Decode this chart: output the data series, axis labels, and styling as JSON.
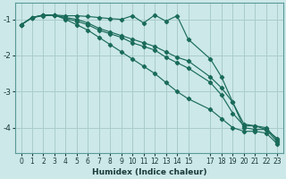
{
  "xlabel": "Humidex (Indice chaleur)",
  "bg_color": "#cce8e8",
  "grid_color": "#aacccc",
  "line_color": "#1a6b5a",
  "xlim": [
    -0.5,
    23.5
  ],
  "ylim": [
    -4.7,
    -0.55
  ],
  "yticks": [
    -4,
    -3,
    -2,
    -1
  ],
  "xticks": [
    0,
    1,
    2,
    3,
    4,
    5,
    6,
    7,
    8,
    9,
    10,
    11,
    12,
    13,
    14,
    15,
    17,
    18,
    19,
    20,
    21,
    22,
    23
  ],
  "series": [
    {
      "x": [
        0,
        1,
        2,
        3,
        4,
        5,
        6,
        7,
        8,
        9,
        10,
        11,
        12,
        13,
        14,
        15,
        17,
        18,
        19,
        20,
        21,
        22,
        23
      ],
      "y": [
        -1.15,
        -0.95,
        -0.9,
        -0.88,
        -0.9,
        -0.9,
        -0.92,
        -0.95,
        -0.98,
        -1.0,
        -0.9,
        -1.1,
        -0.88,
        -1.05,
        -0.9,
        -1.55,
        -2.1,
        -2.6,
        -3.3,
        -4.0,
        -4.05,
        -4.05,
        -4.3
      ]
    },
    {
      "x": [
        0,
        1,
        2,
        3,
        4,
        5,
        6,
        7,
        8,
        9,
        10,
        11,
        12,
        13,
        14,
        15,
        17,
        18,
        19,
        20,
        21,
        22,
        23
      ],
      "y": [
        -1.15,
        -0.95,
        -0.88,
        -0.88,
        -0.95,
        -1.0,
        -1.1,
        -1.25,
        -1.35,
        -1.45,
        -1.55,
        -1.65,
        -1.75,
        -1.9,
        -2.05,
        -2.15,
        -2.6,
        -2.9,
        -3.3,
        -3.9,
        -3.95,
        -4.0,
        -4.35
      ]
    },
    {
      "x": [
        0,
        1,
        2,
        3,
        4,
        5,
        6,
        7,
        8,
        9,
        10,
        11,
        12,
        13,
        14,
        15,
        17,
        18,
        19,
        20,
        21,
        22,
        23
      ],
      "y": [
        -1.15,
        -0.95,
        -0.88,
        -0.88,
        -0.98,
        -1.05,
        -1.15,
        -1.3,
        -1.4,
        -1.5,
        -1.65,
        -1.75,
        -1.85,
        -2.05,
        -2.2,
        -2.35,
        -2.75,
        -3.1,
        -3.6,
        -3.95,
        -3.95,
        -4.05,
        -4.4
      ]
    },
    {
      "x": [
        0,
        1,
        2,
        3,
        4,
        5,
        6,
        7,
        8,
        9,
        10,
        11,
        12,
        13,
        14,
        15,
        17,
        18,
        19,
        20,
        21,
        22,
        23
      ],
      "y": [
        -1.15,
        -0.95,
        -0.88,
        -0.88,
        -1.0,
        -1.15,
        -1.3,
        -1.5,
        -1.7,
        -1.9,
        -2.1,
        -2.3,
        -2.5,
        -2.75,
        -3.0,
        -3.2,
        -3.5,
        -3.75,
        -4.0,
        -4.1,
        -4.1,
        -4.15,
        -4.45
      ]
    }
  ]
}
